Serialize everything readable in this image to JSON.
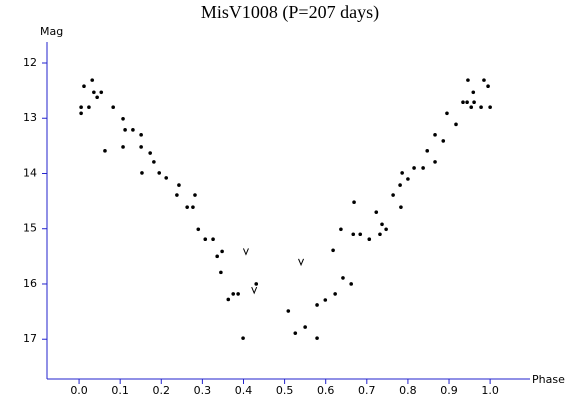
{
  "chart_data": {
    "type": "scatter",
    "title": "MisV1008 (P=207 days)",
    "x_label": "Phase",
    "y_label": "Mag",
    "xlim": [
      -0.078,
      1.097
    ],
    "ylim": [
      11.62,
      17.72
    ],
    "y_inverted": true,
    "xticks": [
      {
        "value": 0,
        "label": "0.0"
      },
      0.1,
      0.2,
      0.3,
      0.4,
      0.5,
      0.6,
      0.7,
      0.8,
      0.9,
      {
        "value": 1,
        "label": "1.0"
      }
    ],
    "yticks": [
      12,
      13,
      14,
      15,
      16,
      17
    ],
    "axis_color": "#2222cc",
    "series": [
      {
        "marker": "dot",
        "color": "#000000",
        "x": [
          0.005,
          0.005,
          0.012,
          0.024,
          0.032,
          0.036,
          0.044,
          0.054,
          0.063,
          0.083,
          0.107,
          0.107,
          0.112,
          0.131,
          0.151,
          0.151,
          0.153,
          0.173,
          0.182,
          0.195,
          0.212,
          0.238,
          0.243,
          0.263,
          0.277,
          0.282,
          0.29,
          0.307,
          0.326,
          0.336,
          0.348,
          0.345,
          0.363,
          0.375,
          0.387,
          0.399,
          0.431,
          0.509,
          0.526,
          0.55,
          0.579,
          0.579,
          0.599,
          0.618,
          0.623,
          0.637,
          0.642,
          0.662,
          0.667,
          0.669,
          0.684,
          0.706,
          0.723,
          0.732,
          0.737,
          0.747,
          0.764,
          0.781,
          0.783,
          0.786,
          0.8,
          0.815,
          0.837,
          0.847,
          0.866,
          0.866,
          0.886,
          0.895,
          0.917,
          0.934,
          0.944,
          0.946,
          0.954,
          0.959,
          0.961,
          0.978,
          0.985,
          0.995,
          1.0
        ],
        "y": [
          12.8,
          12.91,
          12.42,
          12.8,
          12.31,
          12.53,
          12.62,
          12.53,
          13.59,
          12.8,
          13.01,
          13.52,
          13.21,
          13.21,
          13.3,
          13.52,
          13.99,
          13.63,
          13.79,
          13.99,
          14.08,
          14.39,
          14.21,
          14.61,
          14.61,
          14.39,
          15.01,
          15.19,
          15.19,
          15.5,
          15.41,
          15.79,
          16.28,
          16.18,
          16.18,
          16.98,
          16.0,
          16.49,
          16.89,
          16.78,
          16.98,
          16.38,
          16.29,
          15.39,
          16.18,
          15.01,
          15.89,
          16.0,
          15.1,
          14.52,
          15.1,
          15.19,
          14.7,
          15.1,
          14.92,
          15.01,
          14.39,
          14.21,
          14.61,
          13.99,
          14.1,
          13.9,
          13.9,
          13.59,
          13.79,
          13.3,
          13.41,
          12.91,
          13.11,
          12.71,
          12.71,
          12.31,
          12.8,
          12.53,
          12.71,
          12.8,
          12.31,
          12.42,
          12.8
        ]
      },
      {
        "marker": "v",
        "color": "#000000",
        "x": [
          0.406,
          0.426,
          0.54
        ],
        "y": [
          15.41,
          16.11,
          15.6
        ]
      }
    ]
  }
}
